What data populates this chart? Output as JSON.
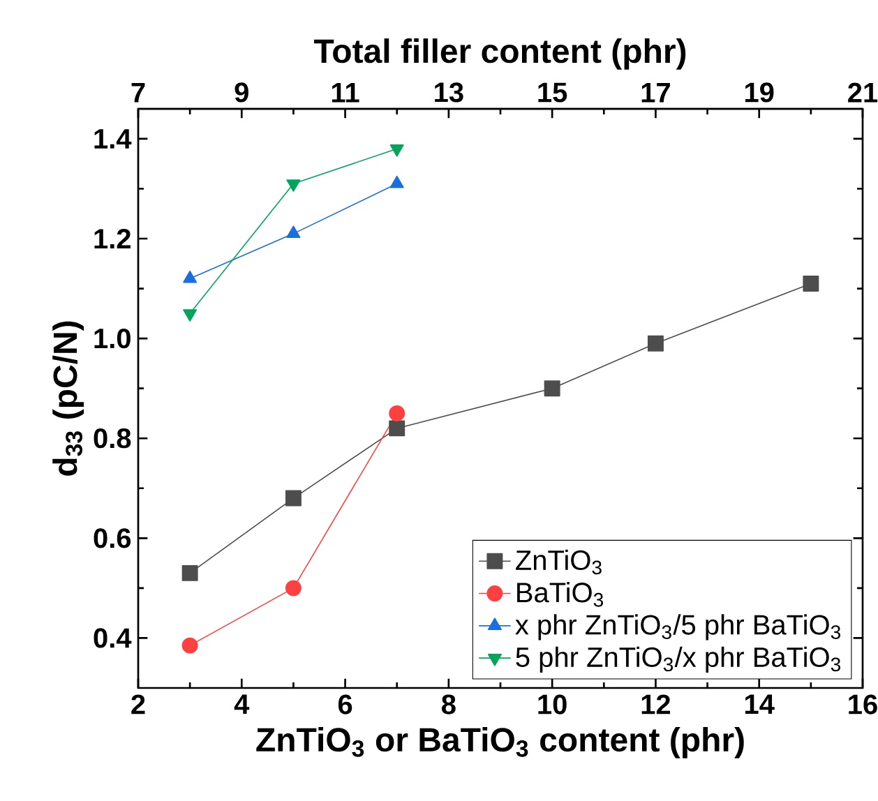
{
  "chart_data": {
    "type": "line",
    "xlabel": "ZnTiO$_{3}$ or BaTiO$_{3}$ content (phr)",
    "ylabel": "d$_{33}$ (pC/N)",
    "x2label": "Total filler content (phr)",
    "xlim": [
      2,
      16
    ],
    "xticks": [
      2,
      4,
      6,
      8,
      10,
      12,
      14,
      16
    ],
    "x2lim": [
      7,
      21
    ],
    "x2ticks": [
      7,
      9,
      11,
      13,
      15,
      17,
      19,
      21
    ],
    "ylim": [
      0.3,
      1.46
    ],
    "yticks": [
      {
        "value": 0.4,
        "label": "0.4"
      },
      {
        "value": 0.6,
        "label": "0.6"
      },
      {
        "value": 0.8,
        "label": "0.8"
      },
      {
        "value": 1.0,
        "label": "1.0"
      },
      {
        "value": 1.2,
        "label": "1.2"
      },
      {
        "value": 1.4,
        "label": "1.4"
      }
    ],
    "legend": "bottom right",
    "grid": false,
    "series": [
      {
        "name": "ZnTiO$_{3}$",
        "color": "#4d4d4d",
        "marker": "square",
        "x": [
          3,
          5,
          7,
          10,
          12,
          15
        ],
        "values": [
          0.53,
          0.68,
          0.82,
          0.9,
          0.99,
          1.11
        ]
      },
      {
        "name": "BaTiO$_{3}$",
        "color": "#ff4040",
        "marker": "circle",
        "x": [
          3,
          5,
          7
        ],
        "values": [
          0.385,
          0.5,
          0.85
        ]
      },
      {
        "name": "x phr ZnTiO$_{3}$/5 phr BaTiO$_{3}$",
        "color": "#1a6fe0",
        "marker": "triangle",
        "x": [
          3,
          5,
          7
        ],
        "values": [
          1.12,
          1.21,
          1.31
        ]
      },
      {
        "name": "5 phr ZnTiO$_{3}$/x phr BaTiO$_{3}$",
        "color": "#00a65a",
        "marker": "triangle_down",
        "x": [
          3,
          5,
          7
        ],
        "values": [
          1.05,
          1.31,
          1.38
        ]
      }
    ]
  }
}
